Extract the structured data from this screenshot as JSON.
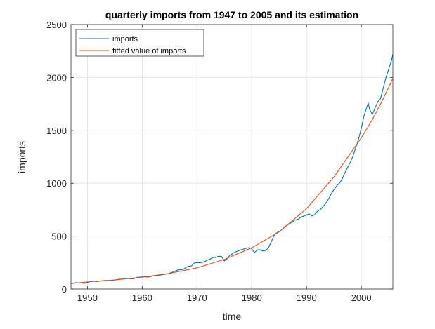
{
  "chart_data": {
    "type": "line",
    "title": "quarterly imports from 1947 to 2005 and its estimation",
    "xlabel": "time",
    "ylabel": "imports",
    "xlim": [
      1947,
      2005.75
    ],
    "ylim": [
      0,
      2500
    ],
    "x_ticks": [
      1950,
      1960,
      1970,
      1980,
      1990,
      2000
    ],
    "y_ticks": [
      0,
      500,
      1000,
      1500,
      2000,
      2500
    ],
    "grid": true,
    "legend_position": "top-left",
    "colors": {
      "imports": "#0072bd",
      "fitted": "#d95319",
      "grid": "#e6e6e6",
      "axis": "#262626"
    },
    "series": [
      {
        "name": "imports",
        "color": "#0072bd",
        "points": [
          [
            1947,
            52
          ],
          [
            1947.5,
            55
          ],
          [
            1948,
            60
          ],
          [
            1948.5,
            58
          ],
          [
            1949,
            56
          ],
          [
            1949.5,
            54
          ],
          [
            1950,
            60
          ],
          [
            1950.5,
            72
          ],
          [
            1951,
            78
          ],
          [
            1951.5,
            70
          ],
          [
            1952,
            72
          ],
          [
            1952.5,
            76
          ],
          [
            1953,
            80
          ],
          [
            1953.5,
            82
          ],
          [
            1954,
            78
          ],
          [
            1954.5,
            80
          ],
          [
            1955,
            86
          ],
          [
            1955.5,
            90
          ],
          [
            1956,
            94
          ],
          [
            1956.5,
            95
          ],
          [
            1957,
            98
          ],
          [
            1957.5,
            100
          ],
          [
            1958,
            96
          ],
          [
            1958.5,
            98
          ],
          [
            1959,
            110
          ],
          [
            1959.5,
            112
          ],
          [
            1960,
            115
          ],
          [
            1960.5,
            116
          ],
          [
            1961,
            112
          ],
          [
            1961.5,
            118
          ],
          [
            1962,
            125
          ],
          [
            1962.5,
            128
          ],
          [
            1963,
            130
          ],
          [
            1963.5,
            134
          ],
          [
            1964,
            138
          ],
          [
            1964.5,
            142
          ],
          [
            1965,
            150
          ],
          [
            1965.5,
            158
          ],
          [
            1966,
            170
          ],
          [
            1966.5,
            180
          ],
          [
            1967,
            182
          ],
          [
            1967.5,
            186
          ],
          [
            1968,
            205
          ],
          [
            1968.5,
            215
          ],
          [
            1969,
            218
          ],
          [
            1969.5,
            245
          ],
          [
            1970,
            250
          ],
          [
            1970.5,
            248
          ],
          [
            1971,
            252
          ],
          [
            1971.5,
            262
          ],
          [
            1972,
            275
          ],
          [
            1972.5,
            285
          ],
          [
            1973,
            300
          ],
          [
            1973.5,
            298
          ],
          [
            1974,
            312
          ],
          [
            1974.5,
            305
          ],
          [
            1975,
            265
          ],
          [
            1975.5,
            285
          ],
          [
            1976,
            320
          ],
          [
            1976.5,
            335
          ],
          [
            1977,
            350
          ],
          [
            1977.5,
            360
          ],
          [
            1978,
            370
          ],
          [
            1978.5,
            378
          ],
          [
            1979,
            385
          ],
          [
            1979.5,
            392
          ],
          [
            1980,
            380
          ],
          [
            1980.5,
            345
          ],
          [
            1981,
            370
          ],
          [
            1981.5,
            372
          ],
          [
            1982,
            360
          ],
          [
            1982.5,
            365
          ],
          [
            1983,
            385
          ],
          [
            1983.5,
            440
          ],
          [
            1984,
            500
          ],
          [
            1984.5,
            530
          ],
          [
            1985,
            545
          ],
          [
            1985.5,
            560
          ],
          [
            1986,
            590
          ],
          [
            1986.5,
            605
          ],
          [
            1987,
            620
          ],
          [
            1987.5,
            640
          ],
          [
            1988,
            655
          ],
          [
            1988.5,
            660
          ],
          [
            1989,
            680
          ],
          [
            1989.5,
            690
          ],
          [
            1990,
            700
          ],
          [
            1990.5,
            710
          ],
          [
            1991,
            690
          ],
          [
            1991.5,
            705
          ],
          [
            1992,
            735
          ],
          [
            1992.5,
            750
          ],
          [
            1993,
            780
          ],
          [
            1993.5,
            810
          ],
          [
            1994,
            850
          ],
          [
            1994.5,
            900
          ],
          [
            1995,
            940
          ],
          [
            1995.5,
            975
          ],
          [
            1996,
            1000
          ],
          [
            1996.5,
            1040
          ],
          [
            1997,
            1100
          ],
          [
            1997.5,
            1150
          ],
          [
            1998,
            1200
          ],
          [
            1998.5,
            1260
          ],
          [
            1999,
            1340
          ],
          [
            1999.5,
            1420
          ],
          [
            2000,
            1520
          ],
          [
            2000.5,
            1640
          ],
          [
            2001,
            1720
          ],
          [
            2001.25,
            1760
          ],
          [
            2001.5,
            1700
          ],
          [
            2002,
            1650
          ],
          [
            2002.5,
            1710
          ],
          [
            2003,
            1770
          ],
          [
            2003.5,
            1800
          ],
          [
            2004,
            1900
          ],
          [
            2004.5,
            2000
          ],
          [
            2005,
            2080
          ],
          [
            2005.5,
            2160
          ],
          [
            2005.75,
            2220
          ]
        ]
      },
      {
        "name": "fitted value of imports",
        "color": "#d95319",
        "points": [
          [
            1947,
            52
          ],
          [
            1950,
            67
          ],
          [
            1955,
            86
          ],
          [
            1960,
            112
          ],
          [
            1965,
            148
          ],
          [
            1970,
            200
          ],
          [
            1975,
            280
          ],
          [
            1980,
            390
          ],
          [
            1985,
            540
          ],
          [
            1990,
            760
          ],
          [
            1995,
            1060
          ],
          [
            2000,
            1430
          ],
          [
            2002,
            1600
          ],
          [
            2004,
            1800
          ],
          [
            2005.75,
            1990
          ]
        ]
      }
    ]
  }
}
